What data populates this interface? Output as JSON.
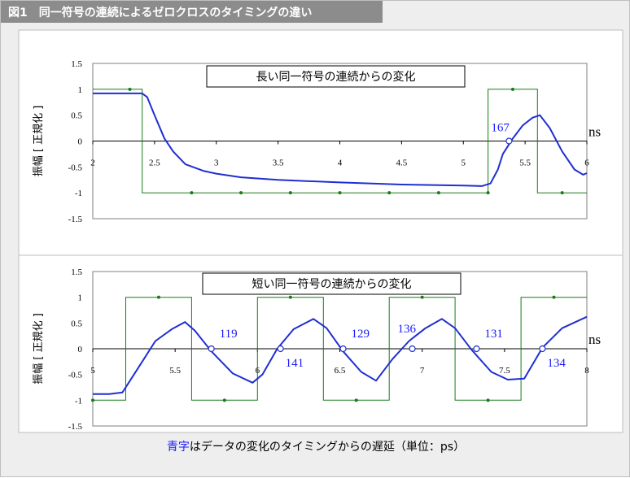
{
  "figure_title": "図1　同一符号の連続によるゼロクロスのタイミングの違い",
  "footer": {
    "highlight": "青字",
    "rest": "はデータの変化のタイミングからの遅延（単位：ps）"
  },
  "colors": {
    "signal": "#1f2fd1",
    "data": "#1a7a1a",
    "annotation": "#1a1aff",
    "header_bg": "#8c8c8c",
    "page_bg": "#eeeeee"
  },
  "chart_data": [
    {
      "type": "line",
      "title": "長い同一符号の連続からの変化",
      "xlabel": "ns",
      "ylabel": "振幅 [ 正規化 ]",
      "xlim": [
        2,
        6
      ],
      "ylim": [
        -1.5,
        1.5
      ],
      "xticks": [
        "2",
        "2.5",
        "3",
        "3.5",
        "4",
        "4.5",
        "5",
        "5.5",
        "6"
      ],
      "yticks": [
        "1.5",
        "1",
        "0.5",
        "0",
        "-0.5",
        "-1",
        "-1.5"
      ],
      "series": [
        {
          "kind": "data",
          "x": [
            2.0,
            2.4,
            2.4,
            5.2,
            5.2,
            5.6,
            5.6,
            6.0
          ],
          "y": [
            1,
            1,
            -1,
            -1,
            1,
            1,
            -1,
            -1
          ],
          "markers": [
            [
              2.3,
              1
            ],
            [
              2.8,
              -1
            ],
            [
              3.2,
              -1
            ],
            [
              3.6,
              -1
            ],
            [
              4.0,
              -1
            ],
            [
              4.4,
              -1
            ],
            [
              4.8,
              -1
            ],
            [
              5.2,
              -1
            ],
            [
              5.4,
              1
            ],
            [
              5.8,
              -1
            ]
          ]
        },
        {
          "kind": "signal",
          "x": [
            2.0,
            2.2,
            2.4,
            2.44,
            2.5,
            2.58,
            2.65,
            2.75,
            2.9,
            3.0,
            3.2,
            3.5,
            4.0,
            4.5,
            5.0,
            5.15,
            5.22,
            5.28,
            5.32,
            5.4,
            5.48,
            5.56,
            5.62,
            5.7,
            5.8,
            5.9,
            5.97,
            6.0
          ],
          "y": [
            0.92,
            0.92,
            0.92,
            0.85,
            0.5,
            0.05,
            -0.2,
            -0.45,
            -0.58,
            -0.63,
            -0.7,
            -0.75,
            -0.8,
            -0.84,
            -0.86,
            -0.87,
            -0.82,
            -0.55,
            -0.25,
            0.05,
            0.3,
            0.45,
            0.5,
            0.25,
            -0.2,
            -0.55,
            -0.65,
            -0.62
          ]
        }
      ],
      "crossings": [
        {
          "x": 5.37,
          "label": "167"
        }
      ]
    },
    {
      "type": "line",
      "title": "短い同一符号の連続からの変化",
      "xlabel": "ns",
      "ylabel": "振幅 [ 正規化 ]",
      "xlim": [
        5,
        8
      ],
      "ylim": [
        -1.5,
        1.5
      ],
      "xticks": [
        "5",
        "5.5",
        "6",
        "6.5",
        "7",
        "7.5",
        "8"
      ],
      "yticks": [
        "1.5",
        "1",
        "0.5",
        "0",
        "-0.5",
        "-1",
        "-1.5"
      ],
      "series": [
        {
          "kind": "data",
          "x": [
            5.0,
            5.2,
            5.2,
            5.6,
            5.6,
            6.0,
            6.0,
            6.4,
            6.4,
            6.8,
            6.8,
            7.2,
            7.2,
            7.6,
            7.6,
            8.0
          ],
          "y": [
            -1,
            -1,
            1,
            1,
            -1,
            -1,
            1,
            1,
            -1,
            -1,
            1,
            1,
            -1,
            -1,
            1,
            1
          ],
          "markers": [
            [
              5.0,
              -1
            ],
            [
              5.4,
              1
            ],
            [
              5.8,
              -1
            ],
            [
              6.2,
              1
            ],
            [
              6.6,
              -1
            ],
            [
              7.0,
              1
            ],
            [
              7.4,
              -1
            ],
            [
              7.8,
              1
            ]
          ]
        },
        {
          "kind": "signal",
          "x": [
            5.0,
            5.1,
            5.18,
            5.28,
            5.38,
            5.48,
            5.56,
            5.62,
            5.72,
            5.85,
            5.97,
            6.03,
            6.12,
            6.22,
            6.34,
            6.42,
            6.52,
            6.63,
            6.72,
            6.82,
            6.92,
            7.02,
            7.12,
            7.2,
            7.3,
            7.42,
            7.52,
            7.62,
            7.73,
            7.85,
            8.0
          ],
          "y": [
            -0.88,
            -0.88,
            -0.85,
            -0.35,
            0.15,
            0.38,
            0.52,
            0.35,
            -0.05,
            -0.48,
            -0.66,
            -0.5,
            0.0,
            0.38,
            0.58,
            0.4,
            -0.05,
            -0.45,
            -0.62,
            -0.2,
            0.15,
            0.4,
            0.58,
            0.4,
            -0.02,
            -0.45,
            -0.6,
            -0.58,
            0.02,
            0.4,
            0.62
          ]
        }
      ],
      "crossings": [
        {
          "x": 5.72,
          "label": "119"
        },
        {
          "x": 6.14,
          "label": "141"
        },
        {
          "x": 6.52,
          "label": "129"
        },
        {
          "x": 6.94,
          "label": "136"
        },
        {
          "x": 7.33,
          "label": "131"
        },
        {
          "x": 7.73,
          "label": "134"
        }
      ]
    }
  ]
}
